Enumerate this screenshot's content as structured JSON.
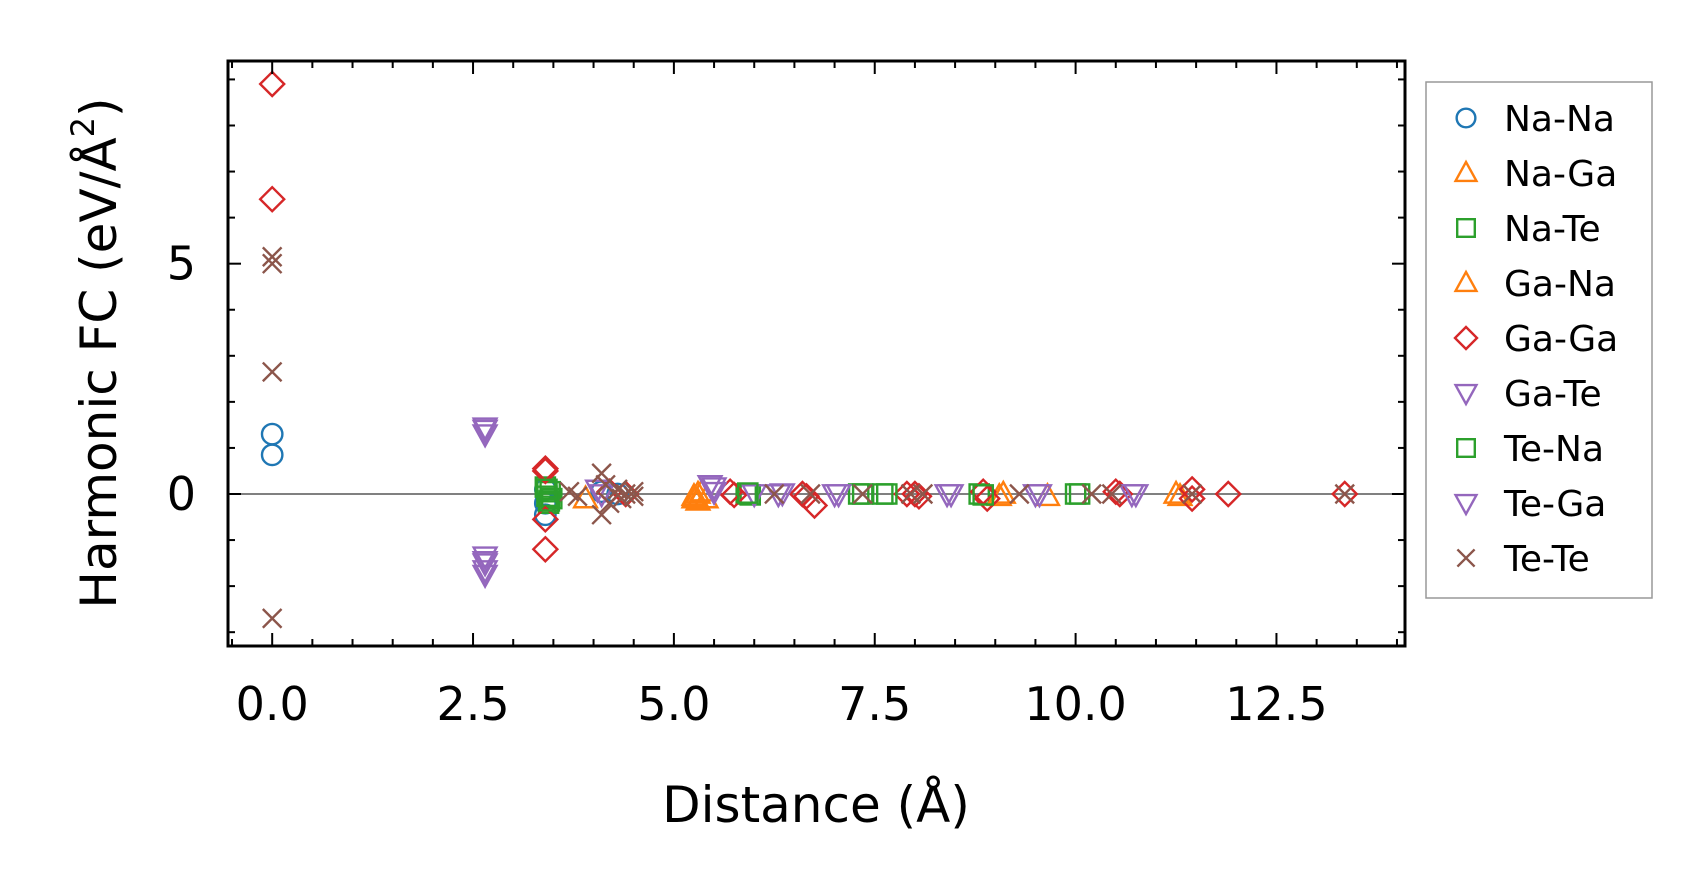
{
  "chart_data": {
    "type": "scatter",
    "title": "",
    "xlabel": "Distance (Å)",
    "ylabel": "Harmonic FC (eV/Å",
    "ylabel_superscript": "2",
    "ylabel_suffix": ")",
    "xlim": [
      -0.55,
      14.1
    ],
    "ylim": [
      -3.3,
      9.4
    ],
    "xticks": [
      0.0,
      2.5,
      5.0,
      7.5,
      10.0,
      12.5
    ],
    "xtick_labels": [
      "0.0",
      "2.5",
      "5.0",
      "7.5",
      "10.0",
      "12.5"
    ],
    "yticks": [
      0,
      5
    ],
    "ytick_labels": [
      "0",
      "5"
    ],
    "zero_line": true,
    "legend_position": "outside-right",
    "series": [
      {
        "name": "Na-Na",
        "marker": "circle",
        "color": "#1f77b4",
        "filled": false,
        "points": [
          [
            0,
            1.3
          ],
          [
            0,
            0.85
          ],
          [
            3.4,
            0.1
          ],
          [
            3.4,
            -0.45
          ],
          [
            3.4,
            -0.2
          ],
          [
            4.1,
            0.05
          ],
          [
            4.3,
            0.0
          ]
        ]
      },
      {
        "name": "Na-Ga",
        "marker": "triangle-up",
        "color": "#ff7f0e",
        "filled": false,
        "points": [
          [
            3.9,
            -0.1
          ],
          [
            5.25,
            -0.05
          ],
          [
            5.3,
            -0.15
          ],
          [
            5.35,
            0.05
          ],
          [
            5.4,
            -0.1
          ],
          [
            9.1,
            0.0
          ],
          [
            9.65,
            -0.05
          ],
          [
            11.3,
            -0.05
          ]
        ]
      },
      {
        "name": "Na-Te",
        "marker": "square",
        "color": "#2ca02c",
        "filled": false,
        "points": [
          [
            3.4,
            0.15
          ],
          [
            3.42,
            -0.05
          ],
          [
            3.44,
            -0.2
          ],
          [
            3.46,
            0.05
          ],
          [
            3.48,
            -0.1
          ],
          [
            5.9,
            0.0
          ],
          [
            5.95,
            -0.02
          ],
          [
            7.3,
            0.0
          ],
          [
            7.6,
            0.0
          ],
          [
            8.8,
            0.0
          ],
          [
            10.0,
            0.0
          ]
        ]
      },
      {
        "name": "Ga-Na",
        "marker": "triangle-up",
        "color": "#ff7f0e",
        "filled": false,
        "points": [
          [
            5.25,
            -0.1
          ],
          [
            5.3,
            0.0
          ],
          [
            9.05,
            -0.05
          ],
          [
            11.25,
            0.0
          ]
        ]
      },
      {
        "name": "Ga-Ga",
        "marker": "diamond",
        "color": "#d62728",
        "filled": false,
        "points": [
          [
            0,
            8.9
          ],
          [
            0,
            6.4
          ],
          [
            3.4,
            0.55
          ],
          [
            3.4,
            0.5
          ],
          [
            3.4,
            -0.55
          ],
          [
            3.4,
            -1.2
          ],
          [
            4.2,
            0.05
          ],
          [
            4.4,
            0.0
          ],
          [
            5.7,
            0.05
          ],
          [
            5.75,
            -0.02
          ],
          [
            6.6,
            0.0
          ],
          [
            6.65,
            -0.05
          ],
          [
            6.75,
            -0.25
          ],
          [
            7.9,
            0.0
          ],
          [
            8.0,
            0.0
          ],
          [
            8.05,
            -0.05
          ],
          [
            8.85,
            0.05
          ],
          [
            8.9,
            -0.1
          ],
          [
            10.5,
            0.05
          ],
          [
            10.55,
            0.0
          ],
          [
            11.45,
            0.1
          ],
          [
            11.45,
            -0.1
          ],
          [
            11.9,
            0.0
          ],
          [
            13.35,
            0.0
          ]
        ]
      },
      {
        "name": "Ga-Te",
        "marker": "triangle-down",
        "color": "#9467bd",
        "filled": false,
        "points": [
          [
            2.65,
            1.45
          ],
          [
            2.65,
            1.3
          ],
          [
            2.65,
            -1.35
          ],
          [
            2.65,
            -1.5
          ],
          [
            2.65,
            -1.75
          ],
          [
            4.05,
            0.1
          ],
          [
            5.45,
            0.2
          ],
          [
            5.5,
            0.05
          ],
          [
            6.0,
            0.0
          ],
          [
            6.3,
            0.0
          ],
          [
            7.0,
            0.0
          ],
          [
            8.4,
            0.0
          ],
          [
            9.55,
            0.0
          ],
          [
            10.7,
            0.0
          ]
        ]
      },
      {
        "name": "Te-Na",
        "marker": "square",
        "color": "#2ca02c",
        "filled": false,
        "points": [
          [
            3.42,
            0.1
          ],
          [
            3.45,
            -0.15
          ],
          [
            5.92,
            0.02
          ],
          [
            7.35,
            0.0
          ],
          [
            7.65,
            0.0
          ],
          [
            8.85,
            -0.02
          ],
          [
            10.05,
            0.0
          ]
        ]
      },
      {
        "name": "Te-Ga",
        "marker": "triangle-down",
        "color": "#9467bd",
        "filled": false,
        "points": [
          [
            2.65,
            1.4
          ],
          [
            2.65,
            -1.45
          ],
          [
            2.65,
            -1.65
          ],
          [
            4.1,
            0.0
          ],
          [
            5.5,
            0.15
          ],
          [
            6.35,
            0.02
          ],
          [
            7.05,
            0.0
          ],
          [
            8.45,
            0.0
          ],
          [
            9.5,
            0.0
          ],
          [
            10.75,
            0.0
          ]
        ]
      },
      {
        "name": "Te-Te",
        "marker": "x",
        "color": "#8c564b",
        "filled": false,
        "points": [
          [
            0,
            5.15
          ],
          [
            0,
            5.0
          ],
          [
            0,
            2.65
          ],
          [
            0,
            -2.7
          ],
          [
            3.7,
            0.05
          ],
          [
            3.8,
            -0.05
          ],
          [
            4.1,
            0.45
          ],
          [
            4.1,
            -0.45
          ],
          [
            4.15,
            0.2
          ],
          [
            4.2,
            -0.2
          ],
          [
            4.3,
            0.1
          ],
          [
            4.35,
            -0.1
          ],
          [
            4.4,
            0.0
          ],
          [
            4.5,
            0.05
          ],
          [
            4.5,
            -0.05
          ],
          [
            6.25,
            0.0
          ],
          [
            6.7,
            0.0
          ],
          [
            7.35,
            0.0
          ],
          [
            7.95,
            0.0
          ],
          [
            8.1,
            0.0
          ],
          [
            9.3,
            0.0
          ],
          [
            10.2,
            0.0
          ],
          [
            10.45,
            0.0
          ],
          [
            11.45,
            0.0
          ],
          [
            13.35,
            0.0
          ]
        ]
      }
    ]
  }
}
